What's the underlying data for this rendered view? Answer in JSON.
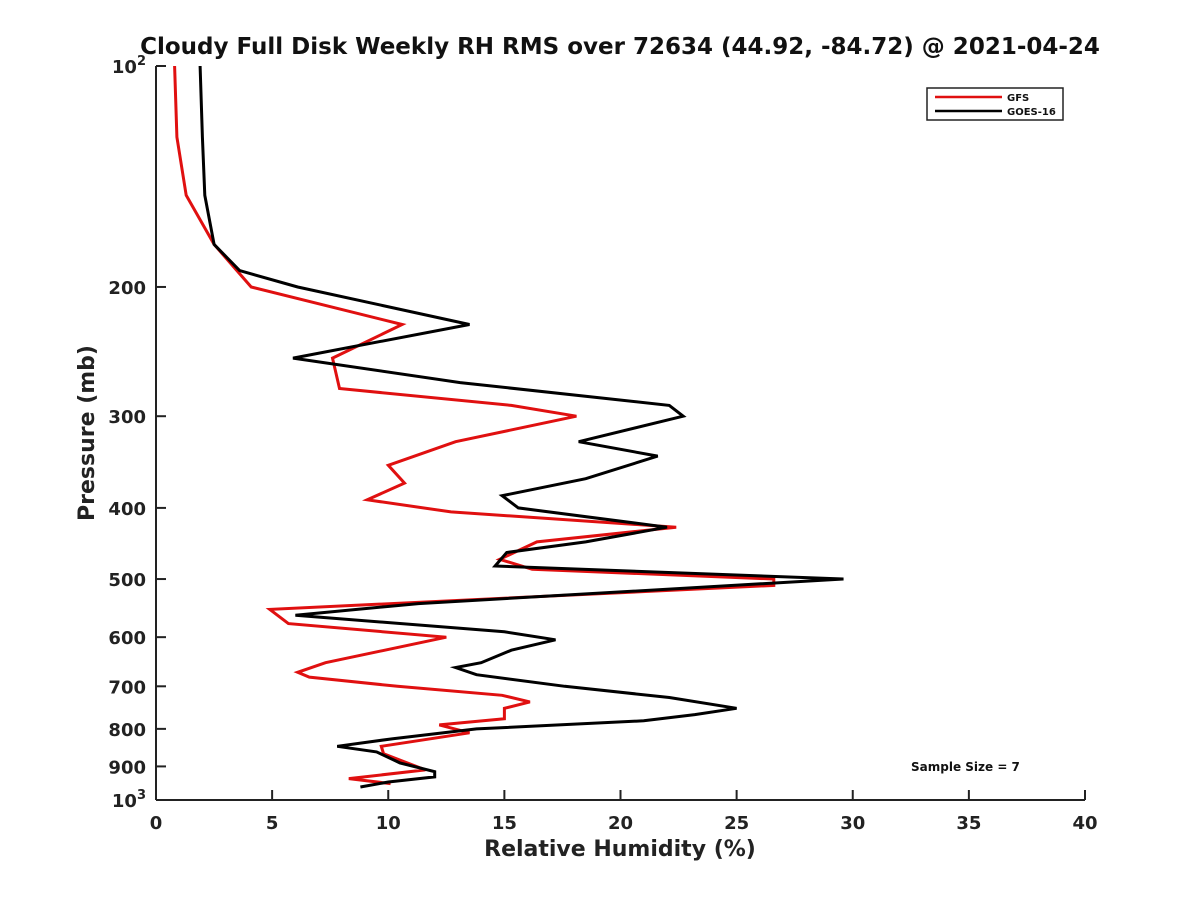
{
  "chart_data": {
    "type": "line",
    "title": "Cloudy Full Disk Weekly RH RMS over 72634 (44.92, -84.72) @ 2021-04-24",
    "xlabel": "Relative Humidity (%)",
    "ylabel": "Pressure (mb)",
    "xlim": [
      0,
      40
    ],
    "ylim": [
      100,
      1000
    ],
    "y_scale": "log",
    "y_reversed": true,
    "grid": false,
    "legend_position": "top-right",
    "x_ticks": [
      "0",
      "5",
      "10",
      "15",
      "20",
      "25",
      "30",
      "35",
      "40"
    ],
    "y_ticks": [
      {
        "value": 100,
        "label": "10",
        "sup": "2"
      },
      {
        "value": 200,
        "label": "200",
        "sup": ""
      },
      {
        "value": 300,
        "label": "300",
        "sup": ""
      },
      {
        "value": 400,
        "label": "400",
        "sup": ""
      },
      {
        "value": 500,
        "label": "500",
        "sup": ""
      },
      {
        "value": 600,
        "label": "600",
        "sup": ""
      },
      {
        "value": 700,
        "label": "700",
        "sup": ""
      },
      {
        "value": 800,
        "label": "800",
        "sup": ""
      },
      {
        "value": 900,
        "label": "900",
        "sup": ""
      },
      {
        "value": 1000,
        "label": "10",
        "sup": "3"
      }
    ],
    "series": [
      {
        "name": "GFS",
        "color": "#e01010",
        "points": [
          [
            0.8,
            100
          ],
          [
            0.9,
            125
          ],
          [
            1.3,
            150
          ],
          [
            2.5,
            175
          ],
          [
            4.1,
            200
          ],
          [
            10.6,
            225
          ],
          [
            7.6,
            250
          ],
          [
            7.9,
            275
          ],
          [
            15.3,
            290
          ],
          [
            18.1,
            300
          ],
          [
            12.9,
            325
          ],
          [
            10.0,
            350
          ],
          [
            10.7,
            370
          ],
          [
            9.1,
            390
          ],
          [
            12.7,
            405
          ],
          [
            22.4,
            425
          ],
          [
            16.4,
            445
          ],
          [
            14.8,
            470
          ],
          [
            16.2,
            485
          ],
          [
            26.6,
            500
          ],
          [
            26.6,
            510
          ],
          [
            4.9,
            550
          ],
          [
            5.7,
            575
          ],
          [
            12.5,
            600
          ],
          [
            7.3,
            650
          ],
          [
            6.1,
            670
          ],
          [
            6.6,
            680
          ],
          [
            10.4,
            700
          ],
          [
            14.9,
            720
          ],
          [
            16.1,
            735
          ],
          [
            15.0,
            750
          ],
          [
            15.0,
            775
          ],
          [
            12.2,
            790
          ],
          [
            13.5,
            810
          ],
          [
            9.7,
            845
          ],
          [
            9.8,
            865
          ],
          [
            11.6,
            910
          ],
          [
            8.3,
            935
          ],
          [
            10.1,
            950
          ]
        ]
      },
      {
        "name": "GOES-16",
        "color": "#000000",
        "points": [
          [
            1.9,
            100
          ],
          [
            2.0,
            125
          ],
          [
            2.1,
            150
          ],
          [
            2.5,
            175
          ],
          [
            3.6,
            190
          ],
          [
            6.1,
            200
          ],
          [
            13.5,
            225
          ],
          [
            5.9,
            250
          ],
          [
            13.1,
            270
          ],
          [
            22.1,
            290
          ],
          [
            22.7,
            300
          ],
          [
            18.2,
            325
          ],
          [
            21.6,
            340
          ],
          [
            18.5,
            365
          ],
          [
            14.9,
            385
          ],
          [
            15.6,
            400
          ],
          [
            22.0,
            425
          ],
          [
            18.5,
            445
          ],
          [
            15.1,
            460
          ],
          [
            14.6,
            480
          ],
          [
            29.6,
            500
          ],
          [
            11.3,
            540
          ],
          [
            6.0,
            560
          ],
          [
            15.0,
            590
          ],
          [
            17.2,
            605
          ],
          [
            15.3,
            625
          ],
          [
            14.0,
            650
          ],
          [
            12.9,
            660
          ],
          [
            13.8,
            675
          ],
          [
            17.6,
            700
          ],
          [
            22.1,
            725
          ],
          [
            25.0,
            750
          ],
          [
            23.2,
            765
          ],
          [
            21.0,
            780
          ],
          [
            13.8,
            800
          ],
          [
            10.2,
            825
          ],
          [
            7.8,
            845
          ],
          [
            9.5,
            860
          ],
          [
            10.5,
            890
          ],
          [
            12.0,
            915
          ],
          [
            12.0,
            930
          ],
          [
            10.0,
            945
          ],
          [
            8.8,
            960
          ]
        ]
      }
    ],
    "legend": [
      "GFS",
      "GOES-16"
    ],
    "annotation": "Sample Size = 7"
  }
}
